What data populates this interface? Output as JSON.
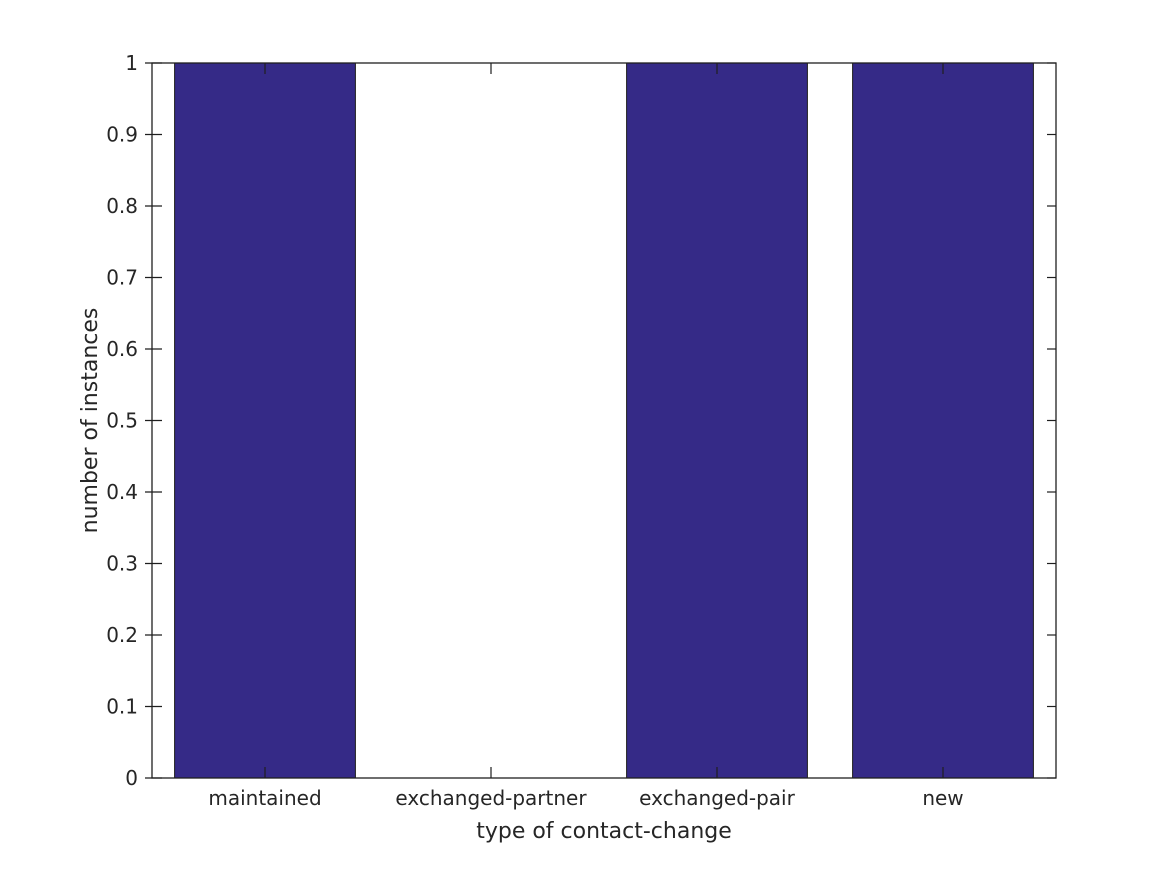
{
  "chart_data": {
    "type": "bar",
    "categories": [
      "maintained",
      "exchanged-partner",
      "exchanged-pair",
      "new"
    ],
    "values": [
      1,
      0,
      1,
      1
    ],
    "title": "",
    "xlabel": "type of contact-change",
    "ylabel": "number of instances",
    "ylim": [
      0,
      1
    ],
    "ytick_step": 0.1,
    "ytick_labels": [
      "0",
      "0.1",
      "0.2",
      "0.3",
      "0.4",
      "0.5",
      "0.6",
      "0.7",
      "0.8",
      "0.9",
      "1"
    ],
    "bar_width_fraction": 0.8,
    "grid": false,
    "legend": null,
    "box": true,
    "colors": {
      "bar_fill": "#352A87",
      "bar_edge": "#1a1a1a",
      "axis": "#1f1f1f",
      "text": "#262626",
      "background": "#ffffff"
    }
  }
}
